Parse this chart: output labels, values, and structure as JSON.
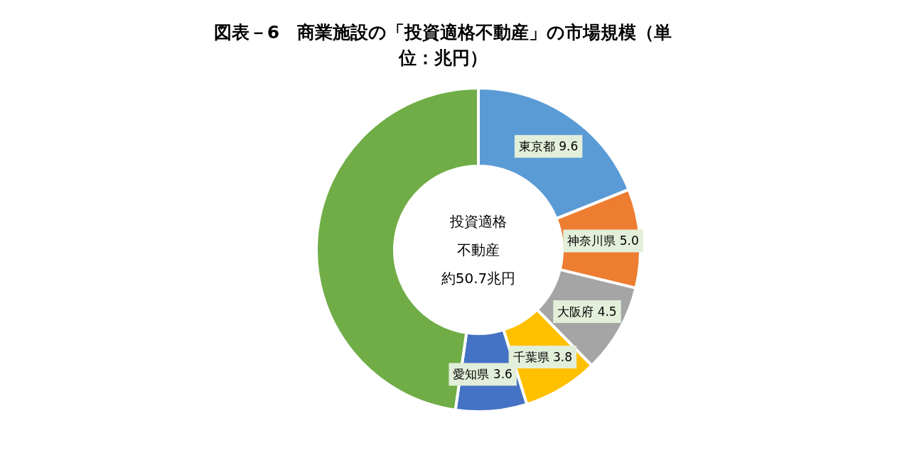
{
  "chart_data": {
    "type": "donut",
    "title": "図表－6　商業施設の「投資適格不動産」の市場規模（単位：兆円）",
    "categories": [
      "東京都",
      "神奈川県",
      "大阪府",
      "千葉県",
      "愛知県",
      null
    ],
    "values": [
      9.6,
      5.0,
      4.5,
      3.8,
      3.6,
      24.2
    ],
    "value_labels": [
      "9.6",
      "5.0",
      "4.5",
      "3.8",
      "3.6",
      null
    ],
    "colors": [
      "#5b9bd5",
      "#ed7d31",
      "#a5a5a5",
      "#ffc000",
      "#4472c4",
      "#70ad47"
    ],
    "annotations": [
      "投資適格",
      "不動産",
      "約50.7兆円"
    ]
  }
}
